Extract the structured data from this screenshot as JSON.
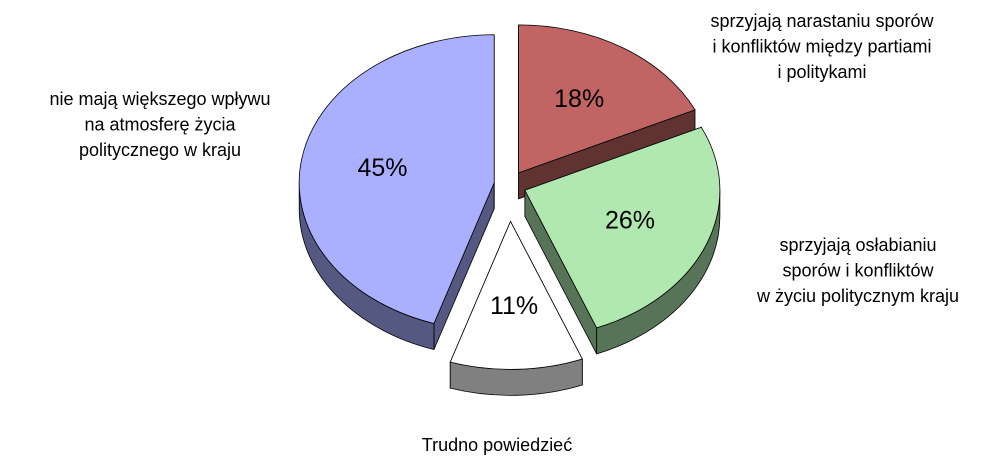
{
  "chart_data": {
    "type": "pie",
    "categories": [
      [
        "sprzyjają narastaniu sporów",
        "i konfliktów między partiami",
        "i politykami"
      ],
      [
        "sprzyjają osłabianiu",
        "sporów i konfliktów",
        "w życiu politycznym kraju"
      ],
      [
        "Trudno powiedzieć"
      ],
      [
        "nie mają większego wpływu",
        "na atmosferę życia",
        "politycznego w kraju"
      ]
    ],
    "values": [
      18,
      26,
      11,
      45
    ],
    "value_labels": [
      "18%",
      "26%",
      "11%",
      "45%"
    ],
    "colors": [
      "#c06464",
      "#b0e8b0",
      "#ffffff",
      "#aab0ff"
    ]
  }
}
